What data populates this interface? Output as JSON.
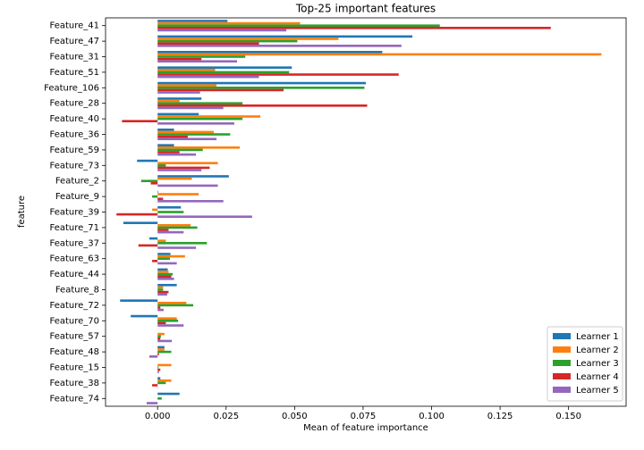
{
  "chart_data": {
    "type": "barh",
    "title": "Top-25 important features",
    "x_label": "Mean of feature importance",
    "y_label": "feature",
    "categories": [
      "Feature_41",
      "Feature_47",
      "Feature_31",
      "Feature_51",
      "Feature_106",
      "Feature_28",
      "Feature_40",
      "Feature_36",
      "Feature_59",
      "Feature_73",
      "Feature_2",
      "Feature_9",
      "Feature_39",
      "Feature_71",
      "Feature_37",
      "Feature_63",
      "Feature_44",
      "Feature_8",
      "Feature_72",
      "Feature_70",
      "Feature_57",
      "Feature_48",
      "Feature_15",
      "Feature_38",
      "Feature_74"
    ],
    "series": [
      {
        "name": "Learner 1",
        "color": "#1f77b4",
        "values": [
          0.0255,
          0.093,
          0.082,
          0.049,
          0.076,
          0.016,
          0.015,
          0.006,
          0.006,
          -0.0075,
          0.026,
          0.0002,
          0.0085,
          -0.0125,
          -0.003,
          0.0047,
          0.0037,
          0.007,
          -0.0137,
          -0.0098,
          0,
          0.0025,
          0,
          0.001,
          0.008
        ]
      },
      {
        "name": "Learner 2",
        "color": "#ff7f0e",
        "values": [
          0.052,
          0.066,
          0.162,
          0.021,
          0.0215,
          0.008,
          0.0375,
          0.0205,
          0.03,
          0.022,
          0.0125,
          0.015,
          -0.002,
          0.012,
          0.003,
          0.01,
          0.004,
          0.002,
          0.0105,
          0.007,
          0.0025,
          0.0025,
          0.005,
          0.005,
          0
        ]
      },
      {
        "name": "Learner 3",
        "color": "#2ca02c",
        "values": [
          0.103,
          0.051,
          0.032,
          0.048,
          0.0755,
          0.031,
          0.031,
          0.0265,
          0.0165,
          0.003,
          -0.006,
          -0.002,
          0.0095,
          0.0145,
          0.018,
          0.0045,
          0.0055,
          0.002,
          0.013,
          0.0075,
          0.0012,
          0.005,
          0.0003,
          0.003,
          0.0015
        ]
      },
      {
        "name": "Learner 4",
        "color": "#d62728",
        "values": [
          0.1435,
          0.037,
          0.016,
          0.088,
          0.046,
          0.0765,
          -0.013,
          0.011,
          0.008,
          0.019,
          -0.0025,
          0.002,
          -0.015,
          0.004,
          -0.007,
          -0.002,
          0.005,
          0.004,
          0.001,
          0.003,
          0.001,
          0.0005,
          0.001,
          -0.002,
          0
        ]
      },
      {
        "name": "Learner 5",
        "color": "#9467bd",
        "values": [
          0.047,
          0.089,
          0.029,
          0.037,
          0.0155,
          0.024,
          0.028,
          0.0215,
          0.014,
          0.016,
          0.022,
          0.024,
          0.0345,
          0.0095,
          0.014,
          0.007,
          0.006,
          0.0035,
          0.0022,
          0.0095,
          0.0052,
          -0.003,
          0.0005,
          0.0001,
          -0.004
        ]
      }
    ],
    "xlim": [
      -0.019,
      0.171
    ],
    "xticks": [
      {
        "value": 0,
        "label": "0.000"
      },
      {
        "value": 0.025,
        "label": "0.025"
      },
      {
        "value": 0.05,
        "label": "0.050"
      },
      {
        "value": 0.075,
        "label": "0.075"
      },
      {
        "value": 0.1,
        "label": "0.100"
      },
      {
        "value": 0.125,
        "label": "0.125"
      },
      {
        "value": 0.15,
        "label": "0.150"
      }
    ],
    "legend": "lower right",
    "grid": false
  }
}
